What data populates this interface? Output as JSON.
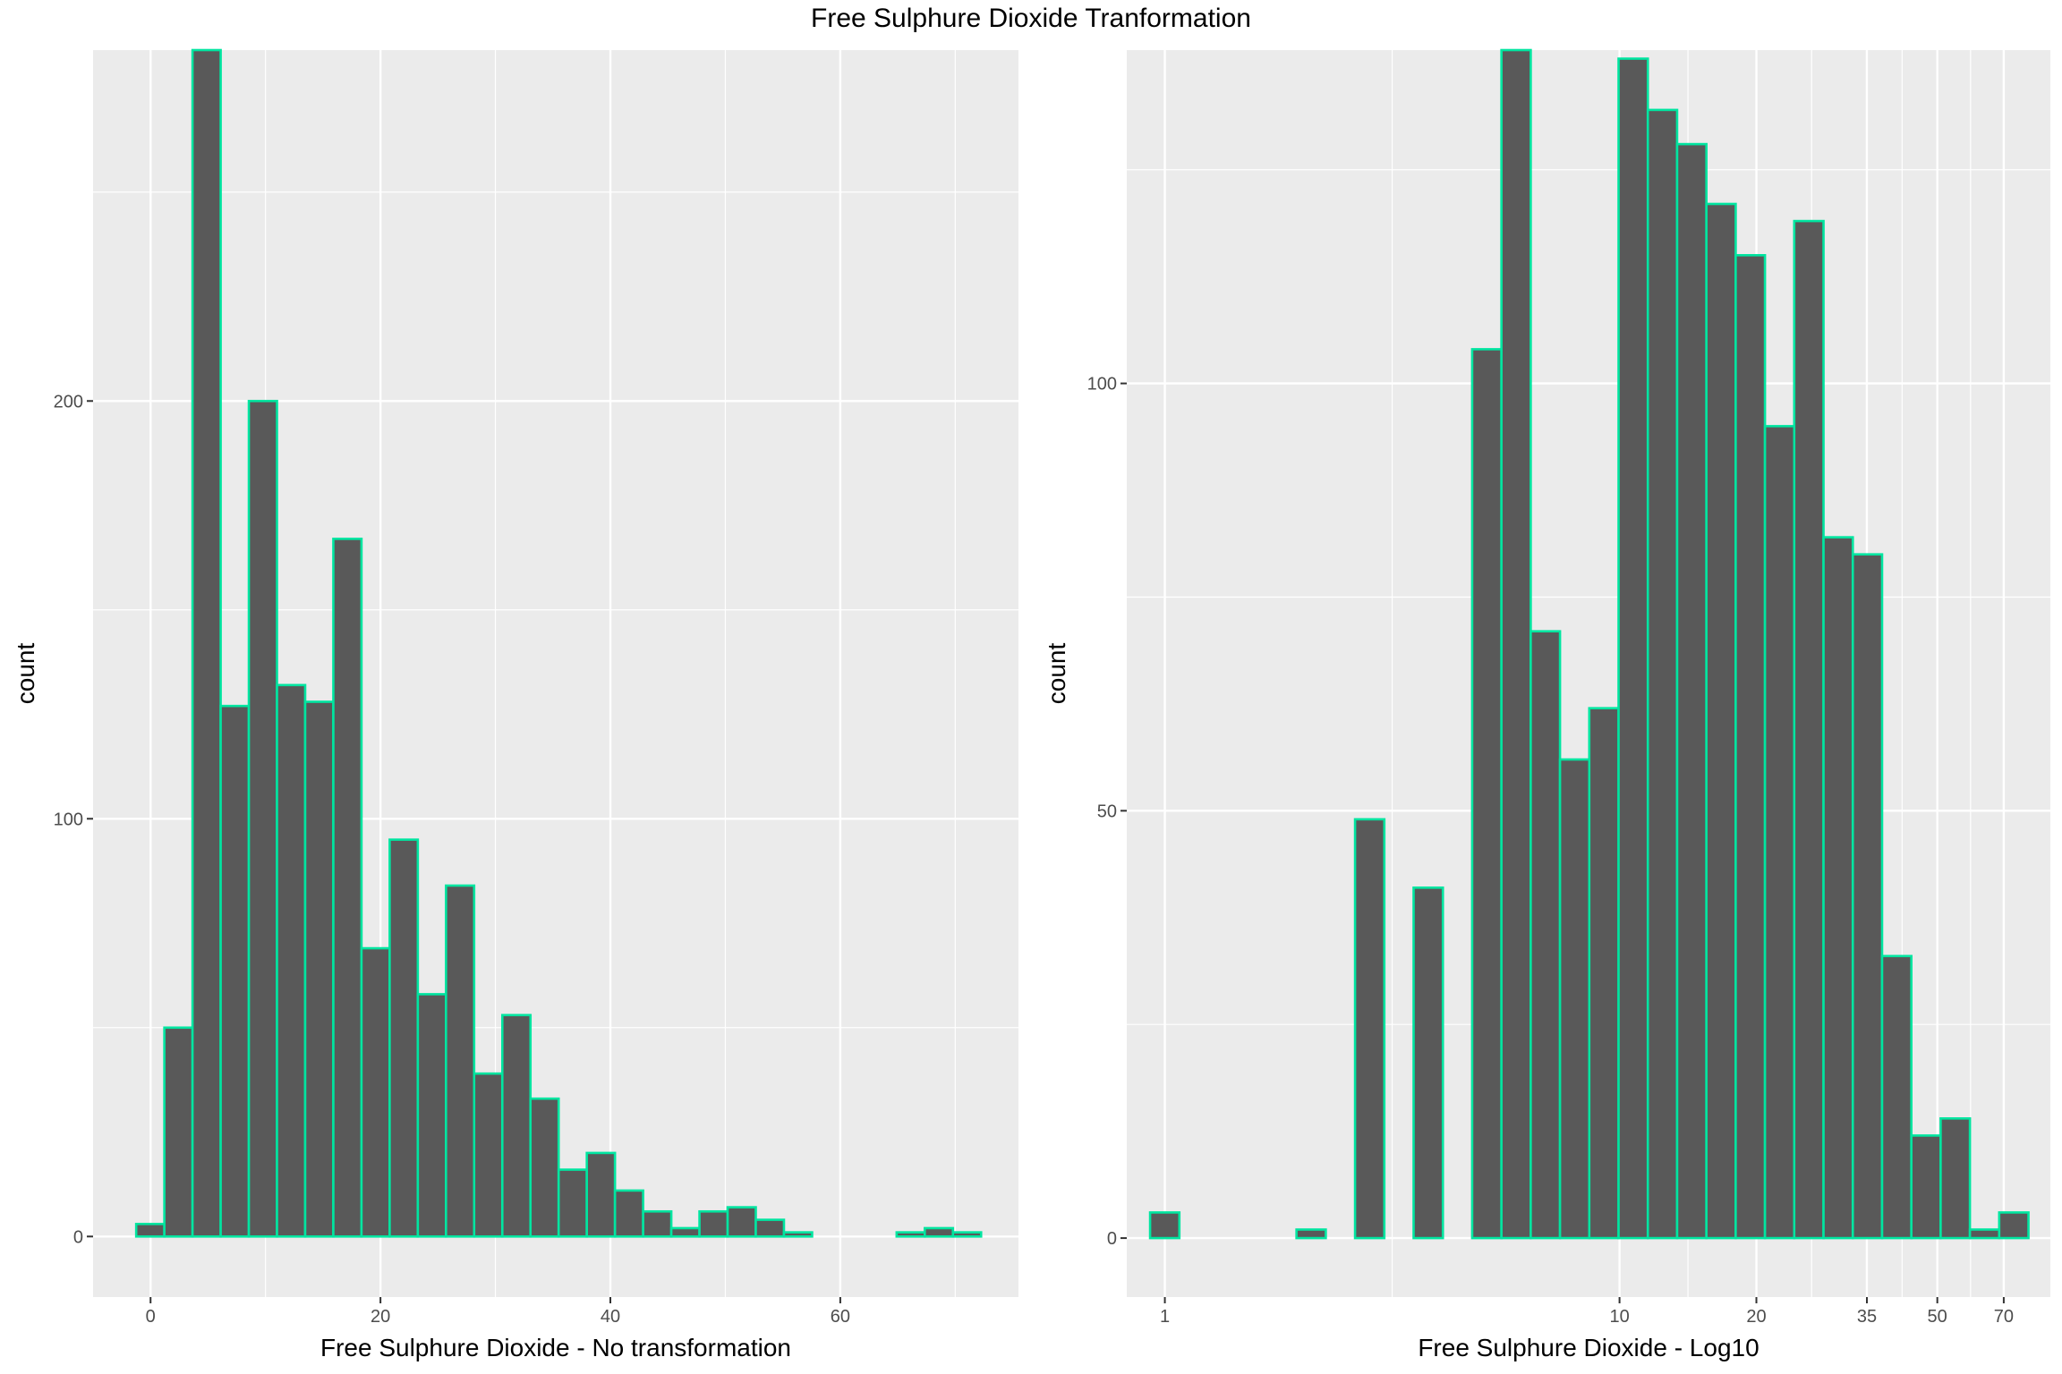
{
  "figure_title": "Free Sulphure Dioxide Tranformation",
  "colors": {
    "panel_background": "#EBEBEB",
    "grid": "#FFFFFF",
    "bar_fill": "#595959",
    "bar_outline": "#00E5A0",
    "tick_text": "#4D4D4D"
  },
  "chart_data": [
    {
      "type": "bar",
      "subtype": "histogram",
      "xlabel": "Free Sulphure Dioxide - No transformation",
      "ylabel": "count",
      "x_scale": "linear",
      "xlim": [
        -5,
        75.5
      ],
      "ylim": [
        -14.5,
        284
      ],
      "x_ticks": [
        0,
        20,
        40,
        60
      ],
      "y_ticks": [
        0,
        100,
        200
      ],
      "grid": true,
      "bin_start": -1.25,
      "bin_width": 2.45,
      "values": [
        3,
        50,
        284,
        127,
        200,
        132,
        128,
        167,
        69,
        95,
        58,
        84,
        39,
        53,
        33,
        16,
        20,
        11,
        6,
        2,
        6,
        7,
        4,
        1,
        0,
        0,
        0,
        1,
        2,
        1
      ]
    },
    {
      "type": "bar",
      "subtype": "histogram",
      "xlabel": "Free Sulphure Dioxide - Log10",
      "ylabel": "count",
      "x_scale": "log10",
      "xlim": [
        0.8245,
        88.64
      ],
      "ylim": [
        -6.9,
        139
      ],
      "x_ticks": [
        1,
        10,
        20,
        35,
        50,
        70
      ],
      "y_ticks": [
        0,
        50,
        100
      ],
      "grid": true,
      "bin_start_log10": -0.0325,
      "bin_width_log10": 0.0644,
      "values": [
        3,
        0,
        0,
        0,
        0,
        1,
        0,
        49,
        0,
        41,
        0,
        104,
        139,
        71,
        56,
        62,
        138,
        132,
        128,
        121,
        115,
        95,
        119,
        82,
        80,
        33,
        12,
        14,
        1,
        3
      ]
    }
  ]
}
